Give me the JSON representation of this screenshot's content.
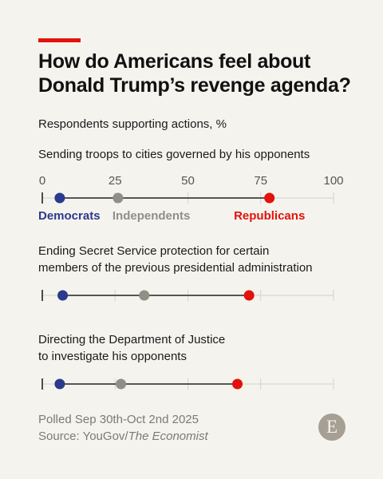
{
  "title": "How do Americans feel about Donald Trump’s revenge agenda?",
  "subtitle": "Respondents supporting actions, %",
  "footer": {
    "line1": "Polled Sep 30th-Oct 2nd 2025",
    "source_prefix": "Source: YouGov/",
    "source_publication": "The Economist"
  },
  "logo": {
    "letter": "E"
  },
  "colors": {
    "accent_red": "#e3120b",
    "democrats": "#2a3a8c",
    "independents": "#8f8f86",
    "republicans": "#e3120b",
    "range_line": "#555555",
    "axis_line": "#d4d2cc"
  },
  "chart_data": {
    "type": "scatter",
    "xlim": [
      0,
      100
    ],
    "ticks": [
      "0",
      "25",
      "50",
      "75",
      "100"
    ],
    "series": [
      {
        "name": "Democrats",
        "color": "#2a3a8c"
      },
      {
        "name": "Independents",
        "color": "#8f8f86"
      },
      {
        "name": "Republicans",
        "color": "#e3120b"
      }
    ],
    "rows": [
      {
        "label_lines": [
          "Sending troops to cities governed by his opponents"
        ],
        "values": [
          6,
          26,
          78
        ]
      },
      {
        "label_lines": [
          "Ending Secret Service protection for certain",
          "members of the previous presidential administration"
        ],
        "values": [
          7,
          35,
          71
        ]
      },
      {
        "label_lines": [
          "Directing the Department of Justice",
          "to investigate his opponents"
        ],
        "values": [
          6,
          27,
          67
        ]
      }
    ]
  }
}
